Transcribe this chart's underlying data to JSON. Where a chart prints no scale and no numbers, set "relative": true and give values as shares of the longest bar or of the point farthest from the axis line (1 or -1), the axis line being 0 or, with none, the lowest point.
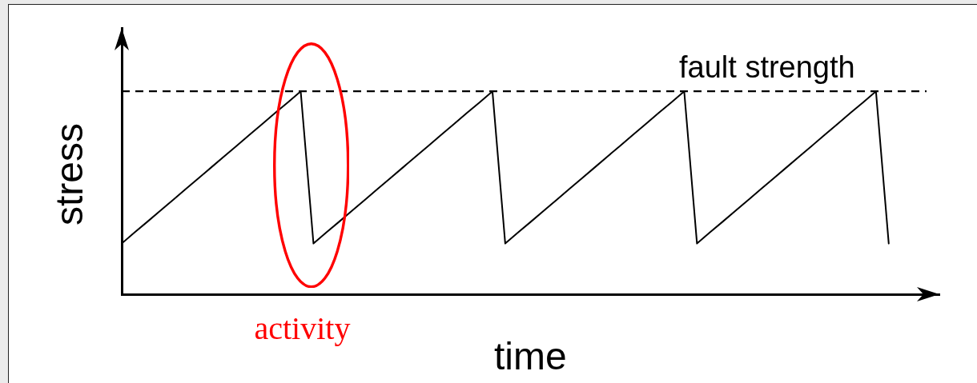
{
  "chart_data": {
    "type": "line",
    "xlabel": "time",
    "ylabel": "stress",
    "relative": true,
    "line_style": "solid",
    "categories": [
      null,
      null,
      null,
      null,
      null,
      null,
      null,
      null,
      null,
      null,
      null,
      null,
      null,
      null,
      null,
      null,
      null,
      null,
      null,
      null,
      null,
      null,
      null,
      null,
      null,
      null,
      null,
      null,
      null,
      null,
      null,
      null,
      null,
      null,
      null,
      null,
      null,
      null,
      null,
      null,
      null,
      null,
      null,
      null,
      null,
      null,
      null,
      null,
      null,
      null,
      null,
      null,
      null,
      null,
      null,
      null,
      null,
      null,
      null,
      null,
      null
    ],
    "series": [
      {
        "color": "#000000",
        "values": [
          0.25,
          0.304,
          0.357,
          0.411,
          0.464,
          0.518,
          0.571,
          0.625,
          0.679,
          0.732,
          0.786,
          0.839,
          0.893,
          0.946,
          1,
          0.25,
          0.304,
          0.357,
          0.411,
          0.464,
          0.518,
          0.571,
          0.625,
          0.679,
          0.732,
          0.786,
          0.839,
          0.893,
          0.946,
          1,
          0.25,
          0.304,
          0.357,
          0.411,
          0.464,
          0.518,
          0.571,
          0.625,
          0.679,
          0.732,
          0.786,
          0.839,
          0.893,
          0.946,
          1,
          0.25,
          0.304,
          0.357,
          0.411,
          0.464,
          0.518,
          0.571,
          0.625,
          0.679,
          0.732,
          0.786,
          0.839,
          0.893,
          0.946,
          1,
          0.25
        ]
      }
    ],
    "ref_lines": [
      {
        "axis": "y",
        "value": 1,
        "label": "fault strength",
        "line_style": "dashed",
        "color": "#000000"
      }
    ],
    "annotations": [
      "activity"
    ]
  }
}
